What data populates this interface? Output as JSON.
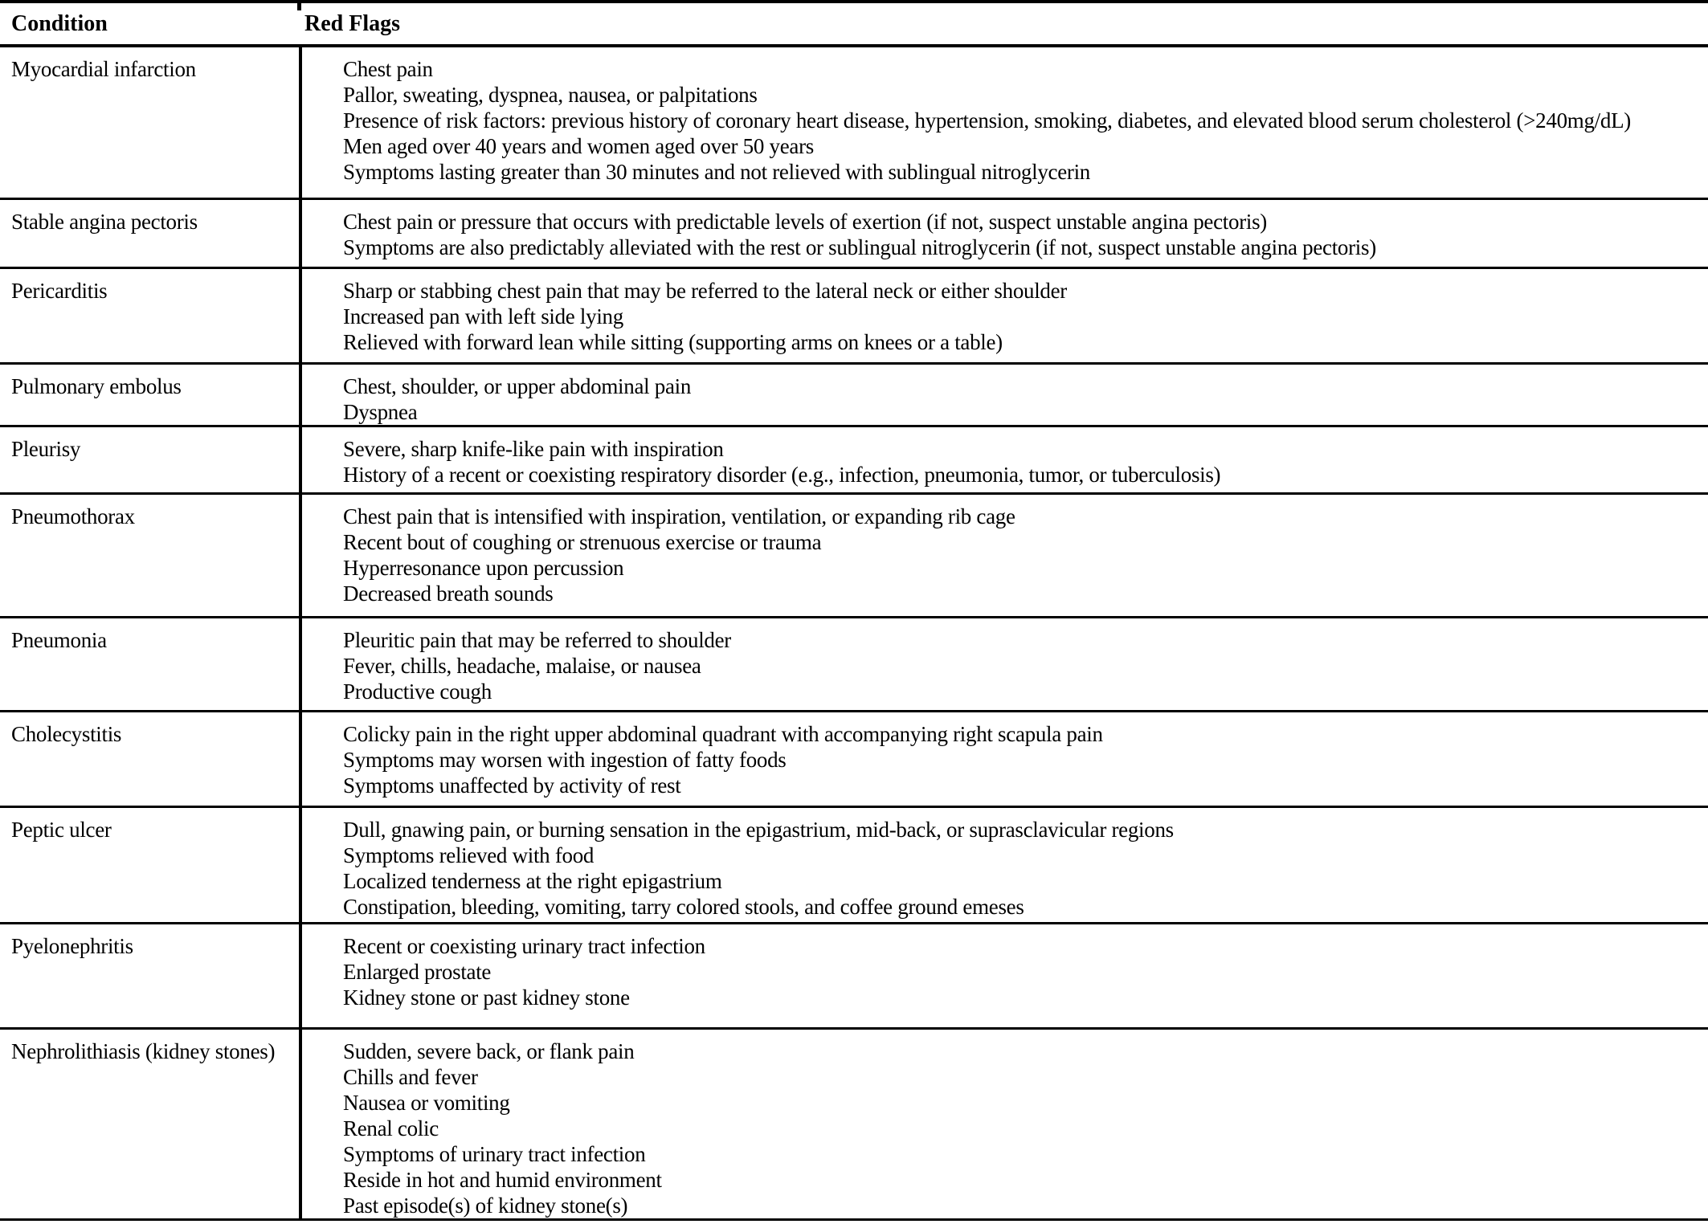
{
  "table": {
    "columns": [
      "Condition",
      "Red Flags"
    ],
    "rows": [
      {
        "condition": "Myocardial infarction",
        "red_flags": [
          "Chest pain",
          "Pallor, sweating, dyspnea, nausea, or palpitations",
          "Presence of risk factors: previous history of coronary heart disease, hypertension, smoking, diabetes, and elevated blood serum cholesterol (>240mg/dL)",
          "Men aged over 40 years and women aged over 50 years",
          "Symptoms lasting greater than 30 minutes and not relieved with sublingual nitroglycerin"
        ]
      },
      {
        "condition": "Stable angina pectoris",
        "red_flags": [
          "Chest pain or pressure that occurs with predictable levels of exertion (if not, suspect unstable angina pectoris)",
          "Symptoms are also predictably alleviated with the rest or sublingual nitroglycerin (if not, suspect unstable angina pectoris)"
        ]
      },
      {
        "condition": "Pericarditis",
        "red_flags": [
          "Sharp or stabbing chest pain that may be referred to the lateral neck or either shoulder",
          "Increased pan with left side lying",
          "Relieved with forward lean while sitting (supporting arms on knees or a table)"
        ]
      },
      {
        "condition": "Pulmonary embolus",
        "red_flags": [
          "Chest, shoulder, or upper abdominal pain",
          "Dyspnea"
        ]
      },
      {
        "condition": "Pleurisy",
        "red_flags": [
          "Severe, sharp knife-like pain with inspiration",
          "History of a recent or coexisting respiratory disorder (e.g., infection, pneumonia, tumor, or tuberculosis)"
        ]
      },
      {
        "condition": "Pneumothorax",
        "red_flags": [
          "Chest pain that is intensified with inspiration, ventilation, or expanding rib cage",
          "Recent bout of coughing or strenuous exercise or trauma",
          "Hyperresonance upon percussion",
          "Decreased breath sounds"
        ]
      },
      {
        "condition": "Pneumonia",
        "red_flags": [
          "Pleuritic pain that may be referred to shoulder",
          "Fever, chills, headache, malaise, or nausea",
          "Productive cough"
        ]
      },
      {
        "condition": "Cholecystitis",
        "red_flags": [
          "Colicky pain in the right upper abdominal quadrant with accompanying right scapula pain",
          "Symptoms may worsen with ingestion of fatty foods",
          "Symptoms unaffected by activity of rest"
        ]
      },
      {
        "condition": "Peptic ulcer",
        "red_flags": [
          "Dull, gnawing pain, or burning sensation in the epigastrium, mid-back, or suprasclavicular regions",
          "Symptoms relieved with food",
          "Localized tenderness at the right epigastrium",
          "Constipation, bleeding, vomiting, tarry colored stools, and coffee ground emeses"
        ]
      },
      {
        "condition": "Pyelonephritis",
        "red_flags": [
          "Recent or coexisting urinary tract infection",
          "Enlarged prostate",
          "Kidney stone or past kidney stone"
        ]
      },
      {
        "condition": "Nephrolithiasis (kidney stones)",
        "red_flags": [
          "Sudden, severe back, or flank pain",
          "Chills and fever",
          "Nausea or vomiting",
          "Renal colic",
          "Symptoms of urinary tract infection",
          "Reside in hot and humid environment",
          "Past episode(s) of kidney stone(s)"
        ]
      }
    ]
  }
}
